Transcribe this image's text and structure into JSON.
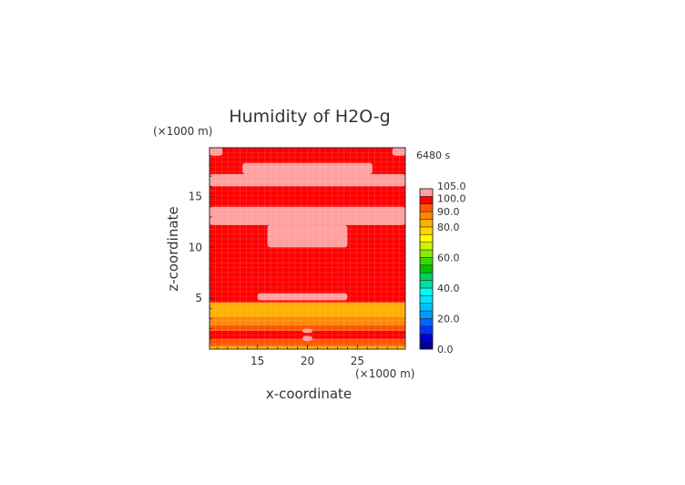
{
  "chart_data": {
    "type": "heatmap",
    "title": "Humidity of H2O-g",
    "xlabel": "x-coordinate",
    "ylabel": "z-coordinate",
    "x_unit": "(×1000 m)",
    "y_unit": "(×1000 m)",
    "time_label": "6480 s",
    "xlim": [
      10.2,
      29.8
    ],
    "ylim": [
      0,
      19.8
    ],
    "x_ticks": [
      "15",
      "20",
      "25"
    ],
    "y_ticks": [
      "5",
      "10",
      "15"
    ],
    "x_tick_values": [
      15,
      20,
      25
    ],
    "y_tick_values": [
      5,
      10,
      15
    ],
    "colorbar": {
      "levels": [
        0,
        5,
        10,
        15,
        20,
        25,
        30,
        35,
        40,
        45,
        50,
        55,
        60,
        65,
        70,
        75,
        80,
        85,
        90,
        95,
        100,
        105
      ],
      "colors": [
        "#00008b",
        "#0000cd",
        "#0033ff",
        "#0066ff",
        "#0099ff",
        "#00bfff",
        "#00e5ff",
        "#00ffee",
        "#00e0a0",
        "#00d060",
        "#00c000",
        "#33dd00",
        "#88ee00",
        "#ccf500",
        "#ffff00",
        "#ffd200",
        "#ffb000",
        "#ff8800",
        "#ff5500",
        "#ff0000",
        "#ffa0a0"
      ],
      "tick_labels": [
        "0.0",
        "20.0",
        "40.0",
        "60.0",
        "80.0",
        "90.0",
        "100.0",
        "105.0"
      ],
      "tick_values": [
        0,
        20,
        40,
        60,
        80,
        90,
        100,
        105
      ]
    },
    "field_bands_z": [
      {
        "z": [
          0.0,
          0.3
        ],
        "value": 80
      },
      {
        "z": [
          0.3,
          1.0
        ],
        "value": 90
      },
      {
        "z": [
          1.0,
          1.8
        ],
        "value": 97
      },
      {
        "z": [
          1.8,
          2.4
        ],
        "value": 92
      },
      {
        "z": [
          2.4,
          3.2
        ],
        "value": 85
      },
      {
        "z": [
          3.2,
          4.6
        ],
        "value": 80
      },
      {
        "z": [
          4.6,
          19.8
        ],
        "value": 97
      }
    ],
    "saturated_regions": [
      {
        "x": [
          10.2,
          29.8
        ],
        "z": [
          16.0,
          17.2
        ]
      },
      {
        "x": [
          13.5,
          26.5
        ],
        "z": [
          17.2,
          18.3
        ]
      },
      {
        "x": [
          10.2,
          29.8
        ],
        "z": [
          12.2,
          14.0
        ]
      },
      {
        "x": [
          16.0,
          24.0
        ],
        "z": [
          10.0,
          12.2
        ]
      },
      {
        "x": [
          15.0,
          24.0
        ],
        "z": [
          4.8,
          5.5
        ]
      },
      {
        "x": [
          10.2,
          11.5
        ],
        "z": [
          19.0,
          19.8
        ]
      },
      {
        "x": [
          28.5,
          29.8
        ],
        "z": [
          19.0,
          19.8
        ]
      },
      {
        "x": [
          19.5,
          20.5
        ],
        "z": [
          1.6,
          2.0
        ]
      },
      {
        "x": [
          19.5,
          20.5
        ],
        "z": [
          0.8,
          1.3
        ]
      }
    ]
  }
}
